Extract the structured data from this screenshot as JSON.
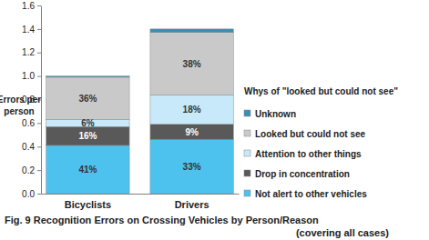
{
  "chart_data": {
    "type": "bar",
    "stacked": true,
    "title": "Fig. 9 Recognition Errors on Crossing Vehicles by Person/Reason",
    "subtitle": "(covering all cases)",
    "y_label": "Errors per person",
    "legend_title": "Whys of \"looked but could not see\"",
    "legend": "right",
    "categories": [
      "Bicyclists",
      "Drivers"
    ],
    "ylim": [
      0,
      1.6
    ],
    "yticks": [
      {
        "value": 0,
        "label": "0.0"
      },
      0.2,
      0.4,
      0.6,
      0.8,
      {
        "value": 1,
        "label": "1.0"
      },
      1.2,
      1.4,
      1.6
    ],
    "series": [
      {
        "name": "Not alert to other vehicles",
        "color": "#4ec2ef",
        "values": [
          0.41,
          0.46
        ],
        "share_labels": [
          "41%",
          "33%"
        ]
      },
      {
        "name": "Drop in concentration",
        "color": "#595959",
        "values": [
          0.16,
          0.13
        ],
        "share_labels": [
          "16%",
          "9%"
        ]
      },
      {
        "name": "Attention to other things",
        "color": "#c7e9f9",
        "values": [
          0.06,
          0.25
        ],
        "share_labels": [
          "6%",
          "18%"
        ]
      },
      {
        "name": "Looked but could not see",
        "color": "#c9c9c9",
        "values": [
          0.36,
          0.53
        ],
        "share_labels": [
          "36%",
          "38%"
        ]
      },
      {
        "name": "Unknown",
        "color": "#3b8fb5",
        "values": [
          0.01,
          0.03
        ],
        "share_labels": [
          null,
          null
        ]
      }
    ]
  }
}
